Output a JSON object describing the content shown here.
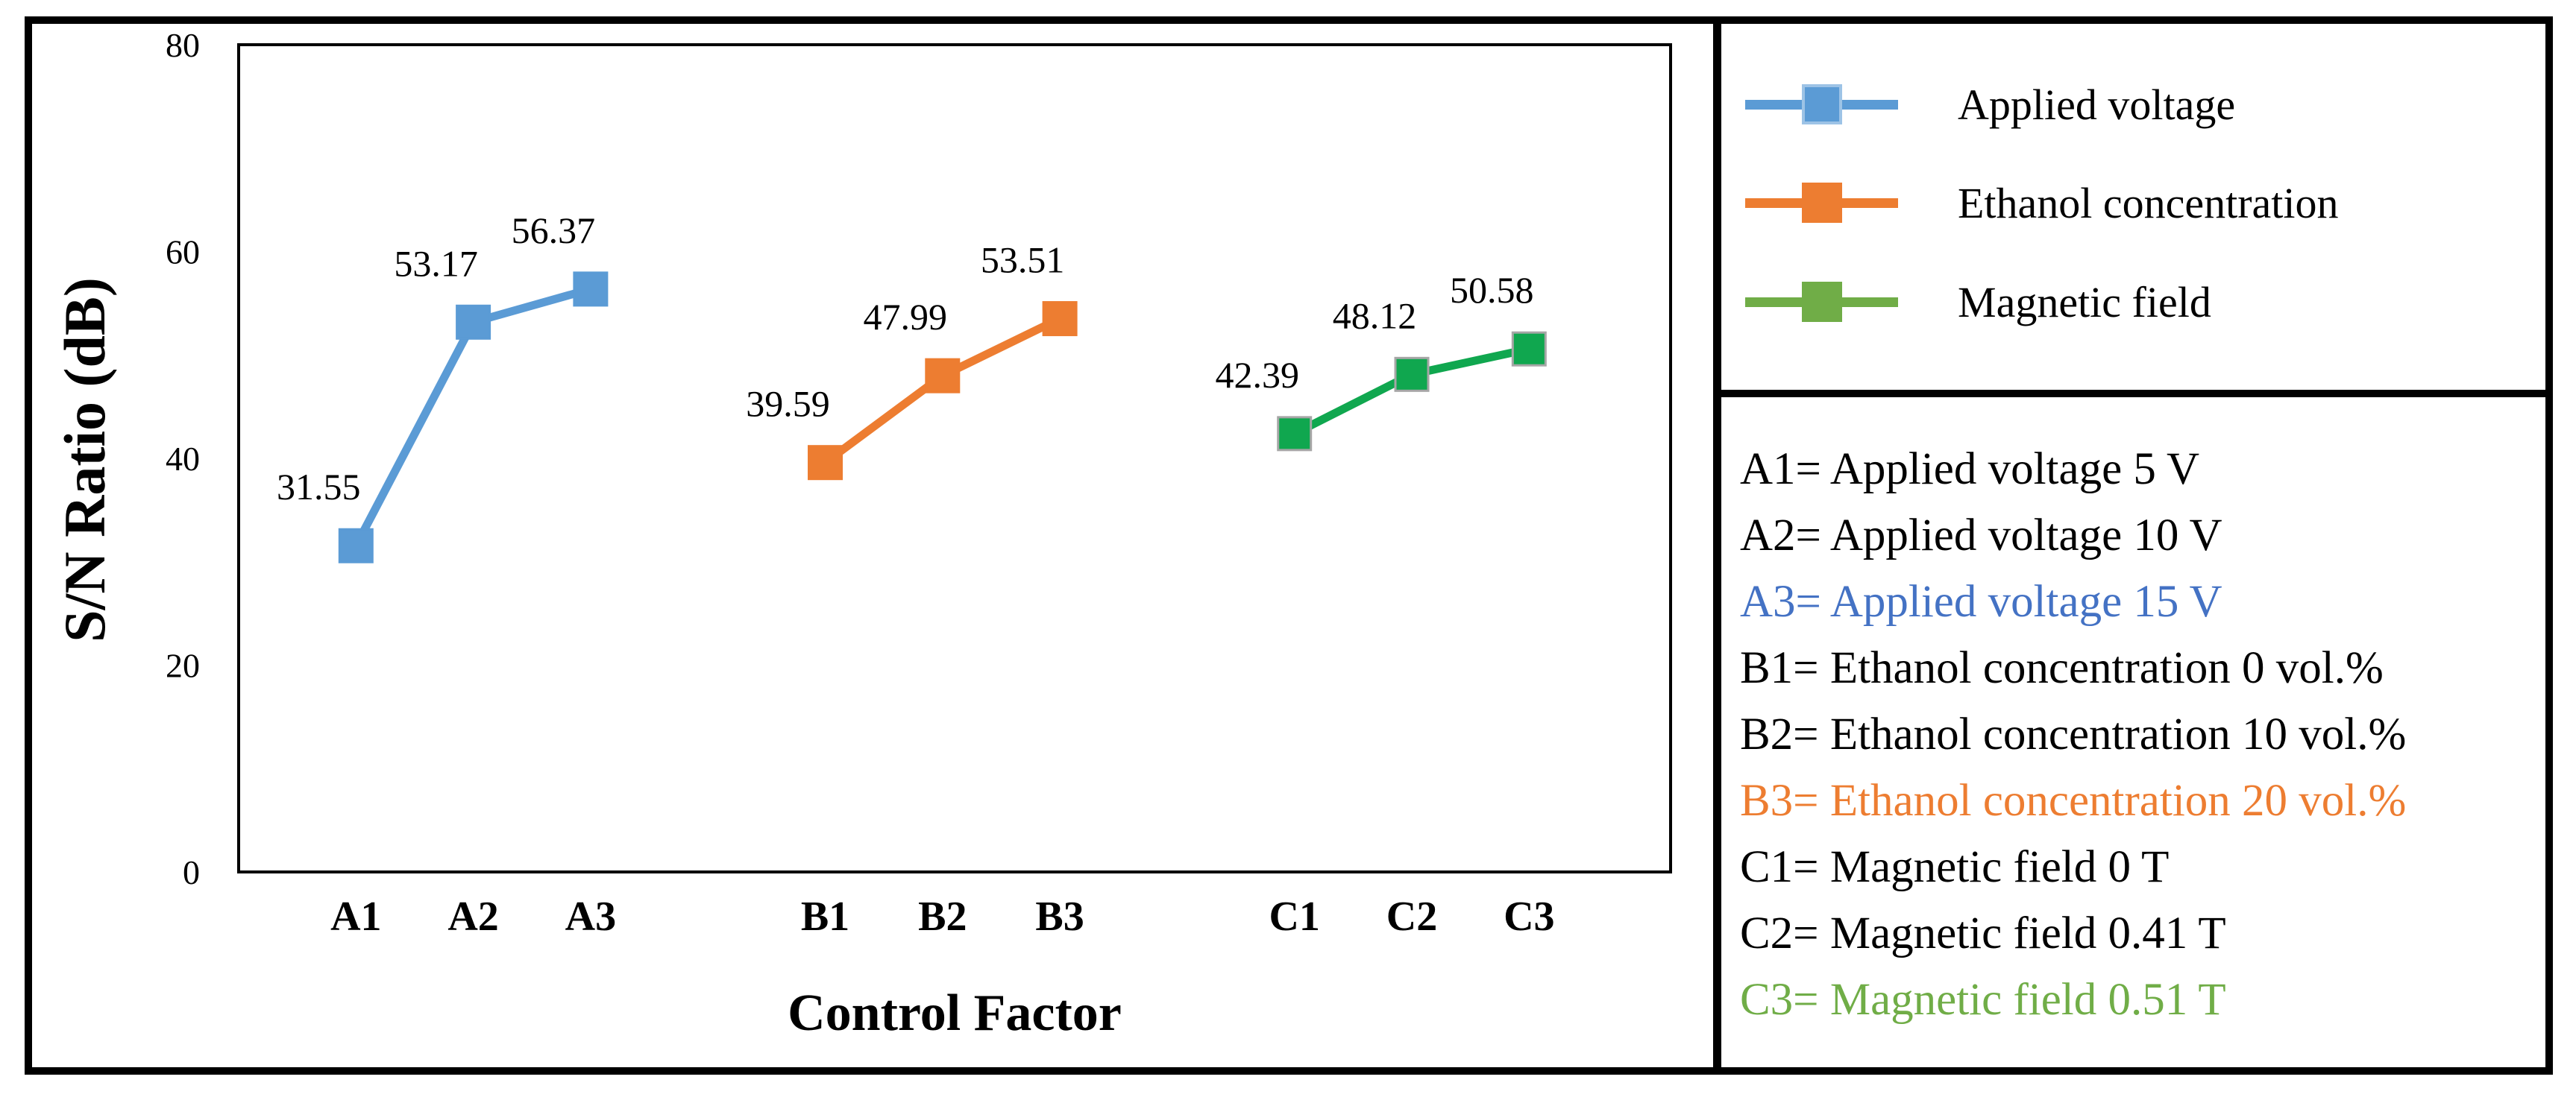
{
  "figure": {
    "background": "#ffffff",
    "border_color": "#000000"
  },
  "chart_data": {
    "type": "line",
    "title": "",
    "xlabel": "Control Factor",
    "ylabel": "S/N Ratio (dB)",
    "ylim": [
      0,
      80
    ],
    "yticks": [
      0,
      20,
      40,
      60,
      80
    ],
    "grid": false,
    "legend_position": "right",
    "marker": "square",
    "categories": [
      "A1",
      "A2",
      "A3",
      "B1",
      "B2",
      "B3",
      "C1",
      "C2",
      "C3"
    ],
    "series": [
      {
        "name": "Applied voltage",
        "color": "#5B9BD5",
        "marker_border": "#5B9BD5",
        "categories": [
          "A1",
          "A2",
          "A3"
        ],
        "slots": [
          1,
          2,
          3
        ],
        "values": [
          31.55,
          53.17,
          56.37
        ]
      },
      {
        "name": "Ethanol concentration",
        "color": "#ED7D31",
        "marker_border": "#ED7D31",
        "categories": [
          "B1",
          "B2",
          "B3"
        ],
        "slots": [
          5,
          6,
          7
        ],
        "values": [
          39.59,
          47.99,
          53.51
        ]
      },
      {
        "name": "Magnetic field",
        "color": "#10A74F",
        "marker_border": "#A6A6A6",
        "categories": [
          "C1",
          "C2",
          "C3"
        ],
        "slots": [
          9,
          10,
          11
        ],
        "values": [
          42.39,
          48.12,
          50.58
        ]
      }
    ]
  },
  "legend": {
    "items": [
      {
        "label": "Applied voltage",
        "color": "#5B9BD5",
        "square_border": "#9DC3E6"
      },
      {
        "label": "Ethanol concentration",
        "color": "#ED7D31",
        "square_border": "#ED7D31"
      },
      {
        "label": "Magnetic field",
        "color": "#70AD47",
        "square_border": "#70AD47"
      }
    ]
  },
  "definitions": {
    "items": [
      {
        "text": "A1= Applied voltage 5 V",
        "color": "#000000"
      },
      {
        "text": "A2= Applied voltage 10 V",
        "color": "#000000"
      },
      {
        "text": "A3= Applied voltage 15 V",
        "color": "#4472C4"
      },
      {
        "text": "B1= Ethanol concentration 0 vol.%",
        "color": "#000000"
      },
      {
        "text": "B2= Ethanol concentration 10 vol.%",
        "color": "#000000"
      },
      {
        "text": "B3= Ethanol concentration 20 vol.%",
        "color": "#ED7D31"
      },
      {
        "text": "C1= Magnetic field 0 T",
        "color": "#000000"
      },
      {
        "text": "C2= Magnetic field 0.41 T",
        "color": "#000000"
      },
      {
        "text": "C3= Magnetic field 0.51 T",
        "color": "#70AD47"
      }
    ]
  }
}
